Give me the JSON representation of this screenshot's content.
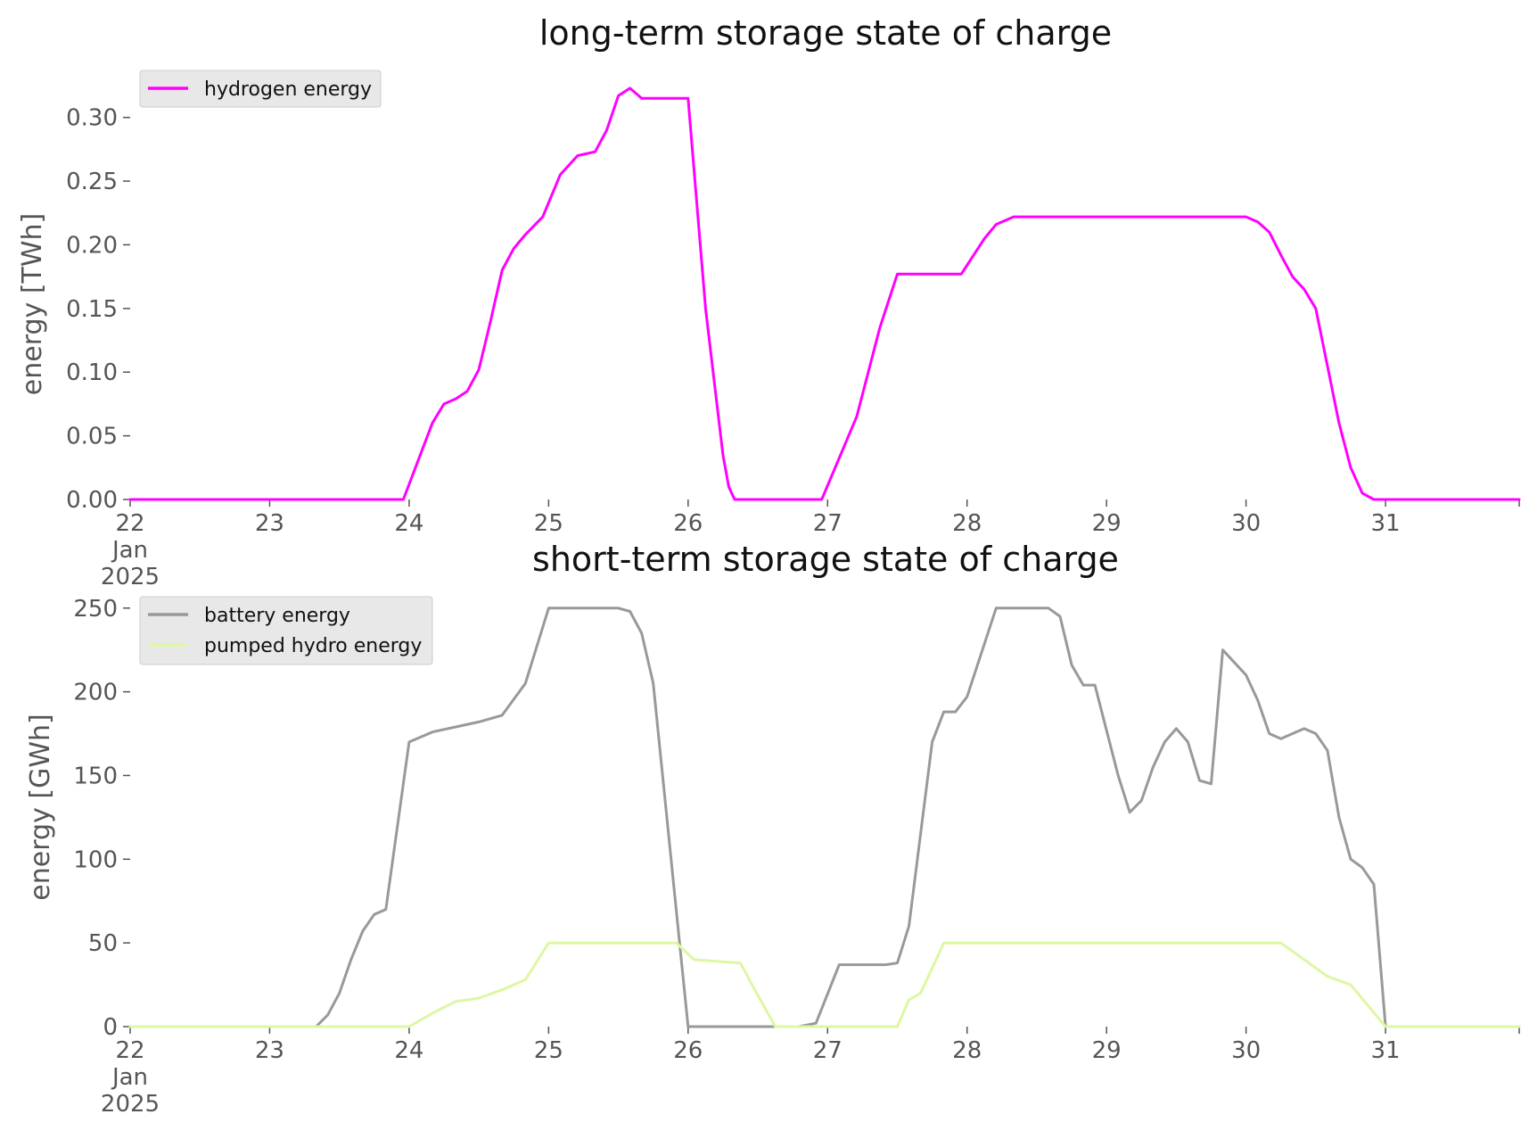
{
  "chart_data": [
    {
      "type": "line",
      "title": "long-term storage state of charge",
      "ylabel": "energy [TWh]",
      "ylim": [
        0,
        0.325
      ],
      "xlim": [
        "2025-01-22T00:00",
        "2025-01-31T23:00"
      ],
      "yticks": [
        "0.00",
        "0.05",
        "0.10",
        "0.15",
        "0.20",
        "0.25",
        "0.30"
      ],
      "xticks": [
        {
          "x": "2025-01-22T00:00",
          "lines": [
            "22",
            "Jan",
            "2025"
          ]
        },
        {
          "x": "2025-01-23T00:00",
          "lines": [
            "23"
          ]
        },
        {
          "x": "2025-01-24T00:00",
          "lines": [
            "24"
          ]
        },
        {
          "x": "2025-01-25T00:00",
          "lines": [
            "25"
          ]
        },
        {
          "x": "2025-01-26T00:00",
          "lines": [
            "26"
          ]
        },
        {
          "x": "2025-01-27T00:00",
          "lines": [
            "27"
          ]
        },
        {
          "x": "2025-01-28T00:00",
          "lines": [
            "28"
          ]
        },
        {
          "x": "2025-01-29T00:00",
          "lines": [
            "29"
          ]
        },
        {
          "x": "2025-01-30T00:00",
          "lines": [
            "30"
          ]
        },
        {
          "x": "2025-01-31T00:00",
          "lines": [
            "31"
          ]
        }
      ],
      "grid": false,
      "legend_position": "top-left",
      "series": [
        {
          "name": "hydrogen energy",
          "color": "#ff00ff",
          "x": [
            "2025-01-22T00:00",
            "2025-01-23T00:00",
            "2025-01-23T23:00",
            "2025-01-24T04:00",
            "2025-01-24T06:00",
            "2025-01-24T08:00",
            "2025-01-24T10:00",
            "2025-01-24T12:00",
            "2025-01-24T14:00",
            "2025-01-24T16:00",
            "2025-01-24T18:00",
            "2025-01-24T20:00",
            "2025-01-24T23:00",
            "2025-01-25T02:00",
            "2025-01-25T05:00",
            "2025-01-25T08:00",
            "2025-01-25T10:00",
            "2025-01-25T12:00",
            "2025-01-25T14:00",
            "2025-01-25T16:00",
            "2025-01-25T18:00",
            "2025-01-25T20:00",
            "2025-01-26T00:00",
            "2025-01-26T03:00",
            "2025-01-26T06:00",
            "2025-01-26T07:00",
            "2025-01-26T08:00",
            "2025-01-26T15:00",
            "2025-01-26T23:00",
            "2025-01-27T05:00",
            "2025-01-27T09:00",
            "2025-01-27T12:00",
            "2025-01-27T15:00",
            "2025-01-27T20:00",
            "2025-01-27T23:00",
            "2025-01-28T03:00",
            "2025-01-28T05:00",
            "2025-01-28T08:00",
            "2025-01-28T12:00",
            "2025-01-29T00:00",
            "2025-01-29T12:00",
            "2025-01-30T00:00",
            "2025-01-30T02:00",
            "2025-01-30T04:00",
            "2025-01-30T06:00",
            "2025-01-30T08:00",
            "2025-01-30T10:00",
            "2025-01-30T12:00",
            "2025-01-30T14:00",
            "2025-01-30T16:00",
            "2025-01-30T18:00",
            "2025-01-30T20:00",
            "2025-01-30T22:00",
            "2025-01-31T00:00",
            "2025-01-31T12:00",
            "2025-01-31T23:00"
          ],
          "values": [
            0,
            0,
            0,
            0.06,
            0.075,
            0.079,
            0.085,
            0.102,
            0.14,
            0.18,
            0.197,
            0.208,
            0.222,
            0.255,
            0.27,
            0.273,
            0.29,
            0.317,
            0.323,
            0.315,
            0.315,
            0.315,
            0.315,
            0.15,
            0.035,
            0.01,
            0,
            0,
            0,
            0.065,
            0.135,
            0.177,
            0.177,
            0.177,
            0.177,
            0.205,
            0.216,
            0.222,
            0.222,
            0.222,
            0.222,
            0.222,
            0.218,
            0.21,
            0.192,
            0.175,
            0.165,
            0.15,
            0.105,
            0.06,
            0.025,
            0.005,
            0,
            0,
            0,
            0
          ]
        }
      ]
    },
    {
      "type": "line",
      "title": "short-term storage state of charge",
      "ylabel": "energy [GWh]",
      "ylim": [
        0,
        252
      ],
      "xlim": [
        "2025-01-22T00:00",
        "2025-01-31T23:00"
      ],
      "yticks": [
        "0",
        "50",
        "100",
        "150",
        "200",
        "250"
      ],
      "xticks": [
        {
          "x": "2025-01-22T00:00",
          "lines": [
            "22",
            "Jan",
            "2025"
          ]
        },
        {
          "x": "2025-01-23T00:00",
          "lines": [
            "23"
          ]
        },
        {
          "x": "2025-01-24T00:00",
          "lines": [
            "24"
          ]
        },
        {
          "x": "2025-01-25T00:00",
          "lines": [
            "25"
          ]
        },
        {
          "x": "2025-01-26T00:00",
          "lines": [
            "26"
          ]
        },
        {
          "x": "2025-01-27T00:00",
          "lines": [
            "27"
          ]
        },
        {
          "x": "2025-01-28T00:00",
          "lines": [
            "28"
          ]
        },
        {
          "x": "2025-01-29T00:00",
          "lines": [
            "29"
          ]
        },
        {
          "x": "2025-01-30T00:00",
          "lines": [
            "30"
          ]
        },
        {
          "x": "2025-01-31T00:00",
          "lines": [
            "31"
          ]
        }
      ],
      "grid": false,
      "legend_position": "top-left",
      "series": [
        {
          "name": "battery energy",
          "color": "#999999",
          "x": [
            "2025-01-22T00:00",
            "2025-01-23T00:00",
            "2025-01-23T08:00",
            "2025-01-23T10:00",
            "2025-01-23T12:00",
            "2025-01-23T14:00",
            "2025-01-23T16:00",
            "2025-01-23T18:00",
            "2025-01-23T20:00",
            "2025-01-24T00:00",
            "2025-01-24T04:00",
            "2025-01-24T08:00",
            "2025-01-24T12:00",
            "2025-01-24T16:00",
            "2025-01-24T20:00",
            "2025-01-25T00:00",
            "2025-01-25T06:00",
            "2025-01-25T12:00",
            "2025-01-25T14:00",
            "2025-01-25T16:00",
            "2025-01-25T18:00",
            "2025-01-26T00:00",
            "2025-01-26T12:00",
            "2025-01-26T19:00",
            "2025-01-26T22:00",
            "2025-01-27T02:00",
            "2025-01-27T10:00",
            "2025-01-27T12:00",
            "2025-01-27T14:00",
            "2025-01-27T18:00",
            "2025-01-27T20:00",
            "2025-01-27T22:00",
            "2025-01-28T00:00",
            "2025-01-28T05:00",
            "2025-01-28T10:00",
            "2025-01-28T14:00",
            "2025-01-28T16:00",
            "2025-01-28T18:00",
            "2025-01-28T20:00",
            "2025-01-28T22:00",
            "2025-01-29T02:00",
            "2025-01-29T04:00",
            "2025-01-29T06:00",
            "2025-01-29T08:00",
            "2025-01-29T10:00",
            "2025-01-29T12:00",
            "2025-01-29T14:00",
            "2025-01-29T16:00",
            "2025-01-29T18:00",
            "2025-01-29T20:00",
            "2025-01-30T00:00",
            "2025-01-30T02:00",
            "2025-01-30T04:00",
            "2025-01-30T06:00",
            "2025-01-30T08:00",
            "2025-01-30T10:00",
            "2025-01-30T12:00",
            "2025-01-30T14:00",
            "2025-01-30T16:00",
            "2025-01-30T18:00",
            "2025-01-30T20:00",
            "2025-01-30T22:00",
            "2025-01-31T00:00",
            "2025-01-31T12:00",
            "2025-01-31T23:00"
          ],
          "values": [
            0,
            0,
            0,
            7,
            20,
            40,
            57,
            67,
            70,
            170,
            176,
            179,
            182,
            186,
            205,
            250,
            250,
            250,
            248,
            235,
            205,
            0,
            0,
            0,
            2,
            37,
            37,
            38,
            60,
            170,
            188,
            188,
            197,
            250,
            250,
            250,
            245,
            216,
            204,
            204,
            150,
            128,
            135,
            155,
            170,
            178,
            170,
            147,
            145,
            225,
            210,
            195,
            175,
            172,
            175,
            178,
            175,
            165,
            125,
            100,
            95,
            85,
            0,
            0,
            0
          ]
        },
        {
          "name": "pumped hydro energy",
          "color": "#ddf7a3",
          "x": [
            "2025-01-22T00:00",
            "2025-01-23T00:00",
            "2025-01-24T00:00",
            "2025-01-24T04:00",
            "2025-01-24T08:00",
            "2025-01-24T12:00",
            "2025-01-24T16:00",
            "2025-01-24T20:00",
            "2025-01-25T00:00",
            "2025-01-25T12:00",
            "2025-01-25T22:00",
            "2025-01-26T01:00",
            "2025-01-26T05:00",
            "2025-01-26T09:00",
            "2025-01-26T11:00",
            "2025-01-26T15:00",
            "2025-01-27T12:00",
            "2025-01-27T14:00",
            "2025-01-27T16:00",
            "2025-01-27T20:00",
            "2025-01-28T00:00",
            "2025-01-28T12:00",
            "2025-01-29T00:00",
            "2025-01-29T12:00",
            "2025-01-30T00:00",
            "2025-01-30T06:00",
            "2025-01-30T10:00",
            "2025-01-30T14:00",
            "2025-01-30T18:00",
            "2025-01-31T00:00",
            "2025-01-31T12:00",
            "2025-01-31T23:00"
          ],
          "values": [
            0,
            0,
            0,
            8,
            15,
            17,
            22,
            28,
            50,
            50,
            50,
            40,
            39,
            38,
            25,
            0,
            0,
            16,
            20,
            50,
            50,
            50,
            50,
            50,
            50,
            50,
            40,
            30,
            25,
            0,
            0,
            0
          ]
        }
      ]
    }
  ]
}
